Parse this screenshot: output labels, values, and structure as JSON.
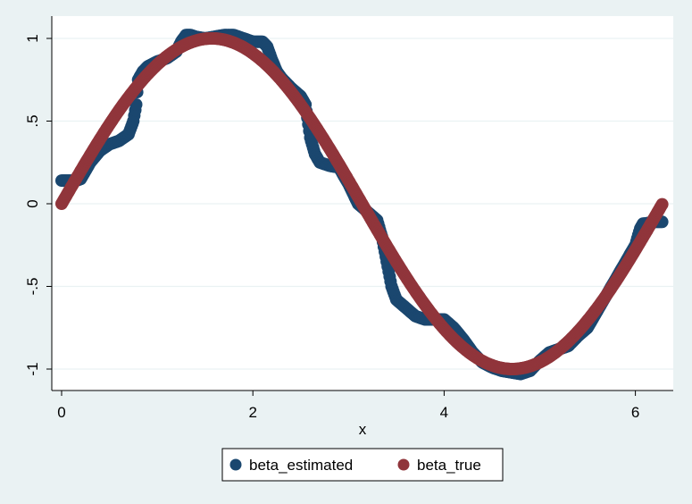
{
  "chart_data": {
    "type": "scatter",
    "xlabel": "x",
    "ylabel": "",
    "xlim": [
      0,
      6.2832
    ],
    "ylim": [
      -1.08,
      1.08
    ],
    "xticks": [
      0,
      2,
      4,
      6
    ],
    "xtick_labels": [
      "0",
      "2",
      "4",
      "6"
    ],
    "yticks": [
      1,
      0.5,
      0,
      -0.5,
      -1
    ],
    "ytick_labels": [
      "1",
      ".5",
      "0",
      "-.5",
      "-1"
    ],
    "grid": "horizontal",
    "legend_position": "bottom",
    "background_colors": {
      "outer": "#eaf2f3",
      "plot": "#ffffff",
      "grid": "#eaf2f3"
    },
    "series": [
      {
        "name": "beta_estimated",
        "color": "#1a476f",
        "x": [
          0,
          0.15,
          0.2,
          0.3,
          0.4,
          0.5,
          0.6,
          0.7,
          0.75,
          0.78,
          0.8,
          0.85,
          0.9,
          1.0,
          1.1,
          1.2,
          1.25,
          1.3,
          1.35,
          1.4,
          1.5,
          1.6,
          1.7,
          1.8,
          1.9,
          2.0,
          2.1,
          2.15,
          2.2,
          2.25,
          2.3,
          2.4,
          2.5,
          2.55,
          2.6,
          2.65,
          2.7,
          2.8,
          2.9,
          3.0,
          3.1,
          3.2,
          3.3,
          3.35,
          3.4,
          3.45,
          3.5,
          3.6,
          3.7,
          3.8,
          4.0,
          4.1,
          4.2,
          4.3,
          4.4,
          4.5,
          4.6,
          4.7,
          4.8,
          4.9,
          5.0,
          5.1,
          5.2,
          5.3,
          5.4,
          5.5,
          5.6,
          5.7,
          5.8,
          5.9,
          6.0,
          6.05,
          6.08,
          6.1,
          6.2,
          6.28
        ],
        "y": [
          0.14,
          0.14,
          0.15,
          0.25,
          0.32,
          0.36,
          0.38,
          0.42,
          0.5,
          0.6,
          0.75,
          0.8,
          0.83,
          0.86,
          0.88,
          0.92,
          0.98,
          1.02,
          1.02,
          1.01,
          1.0,
          1.01,
          1.02,
          1.02,
          1.0,
          0.98,
          0.98,
          0.95,
          0.87,
          0.8,
          0.76,
          0.7,
          0.65,
          0.6,
          0.4,
          0.3,
          0.25,
          0.23,
          0.22,
          0.12,
          0.0,
          -0.05,
          -0.1,
          -0.2,
          -0.35,
          -0.5,
          -0.58,
          -0.63,
          -0.68,
          -0.7,
          -0.7,
          -0.75,
          -0.82,
          -0.9,
          -0.96,
          -0.99,
          -1.01,
          -1.02,
          -1.03,
          -1.01,
          -0.95,
          -0.9,
          -0.88,
          -0.86,
          -0.8,
          -0.75,
          -0.65,
          -0.55,
          -0.45,
          -0.35,
          -0.25,
          -0.15,
          -0.12,
          -0.12,
          -0.11,
          -0.11
        ]
      },
      {
        "name": "beta_true",
        "color": "#90353b",
        "function": "sin(x)",
        "x": [
          0,
          0.25,
          0.5,
          0.75,
          1.0,
          1.25,
          1.5708,
          1.75,
          2.0,
          2.25,
          2.5,
          2.75,
          3.0,
          3.1416,
          3.25,
          3.5,
          3.75,
          4.0,
          4.25,
          4.5,
          4.7124,
          5.0,
          5.25,
          5.5,
          5.75,
          6.0,
          6.2832
        ],
        "y": [
          0,
          0.247,
          0.479,
          0.682,
          0.841,
          0.949,
          1.0,
          0.984,
          0.909,
          0.778,
          0.598,
          0.382,
          0.141,
          0.0,
          -0.108,
          -0.351,
          -0.572,
          -0.757,
          -0.895,
          -0.978,
          -1.0,
          -0.959,
          -0.859,
          -0.706,
          -0.508,
          -0.279,
          0.0
        ]
      }
    ]
  }
}
